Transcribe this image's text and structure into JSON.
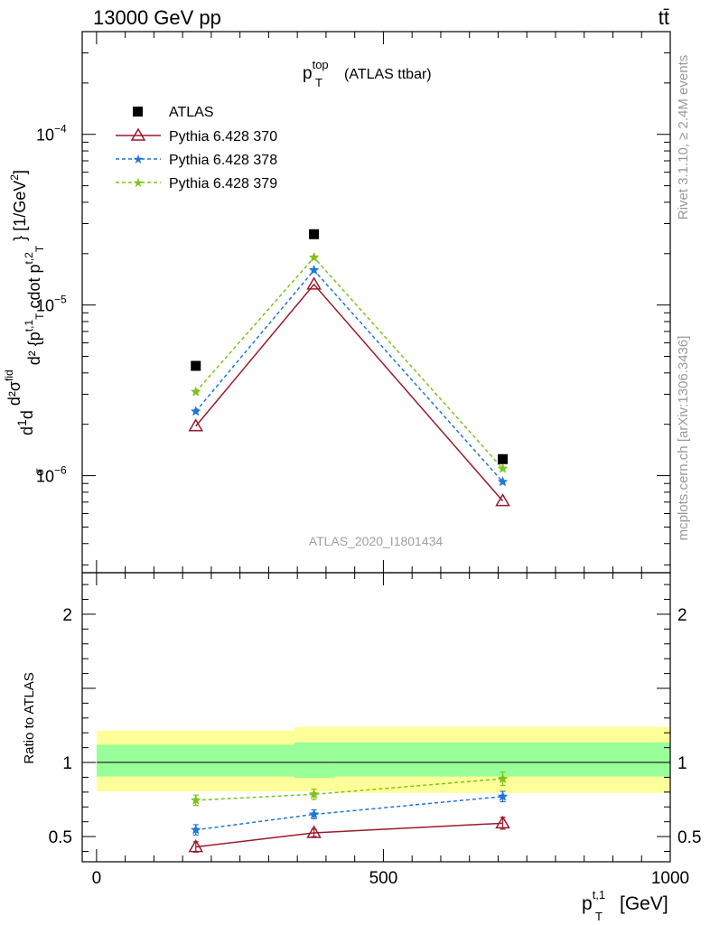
{
  "header": {
    "left": "13000 GeV pp",
    "right": "tt̄"
  },
  "side_labels": {
    "rivet": "Rivet 3.1.10, ≥ 2.4M events",
    "mcplots": "mcplots.cern.ch [arXiv:1306.3436]"
  },
  "chart_data": {
    "type": "line",
    "title_main": "p",
    "title_sup": "top",
    "title_sub": "T",
    "title_suffix": "(ATLAS ttbar)",
    "analysis_label": "ATLAS_2020_I1801434",
    "xlabel": {
      "main": "p",
      "sup": "t,1",
      "sub": "T",
      "unit": "[GeV]"
    },
    "ylabel": "d²σ/d²{p_T^{t,1} cdot p_T^{t,2}} (1/σ) [1/GeV²]",
    "ylabel_parts": {
      "d1": "d",
      "frac_num": "1",
      "frac_den": "σ",
      "d2": "d",
      "num": "d²σ",
      "num_sup": "fid",
      "den": "d² {p",
      "den_sup": "t,1",
      "den_sub": "T",
      "den_mid": "cdot p",
      "den_sup2": "t,2",
      "den_sub2": "T",
      "close": "} [1/GeV",
      "close_sup": "2",
      "close_end": "]"
    },
    "xlim": [
      -25,
      1000
    ],
    "ylim": [
      2.7e-07,
      0.0004
    ],
    "yscale": "log",
    "x_ticks": [
      0,
      500,
      1000
    ],
    "y_ticks": [
      {
        "base": "10",
        "exp": "−6",
        "value": 1e-06
      },
      {
        "base": "10",
        "exp": "−5",
        "value": 1e-05
      },
      {
        "base": "10",
        "exp": "−4",
        "value": 0.0001
      }
    ],
    "x": [
      173,
      379,
      708
    ],
    "data": {
      "name": "ATLAS",
      "values": [
        4.4e-06,
        2.6e-05,
        1.25e-06
      ],
      "color": "#000000"
    },
    "series": [
      {
        "name": "Pythia 6.428 370",
        "values": [
          1.95e-06,
          1.32e-05,
          7.1e-07
        ],
        "color": "#9a1a2e",
        "dash": "solid",
        "marker": "triangle"
      },
      {
        "name": "Pythia 6.428 378",
        "values": [
          2.38e-06,
          1.6e-05,
          9.2e-07
        ],
        "color": "#1f77d4",
        "dash": "dashed",
        "marker": "star"
      },
      {
        "name": "Pythia 6.428 379",
        "values": [
          3.1e-06,
          1.9e-05,
          1.1e-06
        ],
        "color": "#7ec31b",
        "dash": "dashed",
        "marker": "star"
      }
    ],
    "ratio": {
      "ylabel": "Ratio to ATLAS",
      "ylim": [
        0.33,
        2.28
      ],
      "y_ticks": [
        {
          "label": "0.5",
          "value": 0.5
        },
        {
          "label": "1",
          "value": 1
        },
        {
          "label": "2",
          "value": 2
        }
      ],
      "bands": {
        "bins": [
          [
            0,
            345
          ],
          [
            345,
            415
          ],
          [
            415,
            1000
          ]
        ],
        "stat_lo": [
          0.905,
          0.895,
          0.905
        ],
        "stat_hi": [
          1.12,
          1.135,
          1.135
        ],
        "tot_lo": [
          0.805,
          0.805,
          0.795
        ],
        "tot_hi": [
          1.215,
          1.24,
          1.24
        ],
        "stat_color": "#99ff99",
        "tot_color": "#ffff99"
      },
      "series": [
        {
          "name": "Pythia 6.428 370",
          "values": [
            0.43,
            0.525,
            0.59
          ],
          "errors": [
            0.035,
            0.025,
            0.04
          ]
        },
        {
          "name": "Pythia 6.428 378",
          "values": [
            0.545,
            0.65,
            0.77
          ],
          "errors": [
            0.035,
            0.03,
            0.035
          ]
        },
        {
          "name": "Pythia 6.428 379",
          "values": [
            0.745,
            0.785,
            0.89
          ],
          "errors": [
            0.035,
            0.035,
            0.045
          ]
        }
      ]
    }
  }
}
